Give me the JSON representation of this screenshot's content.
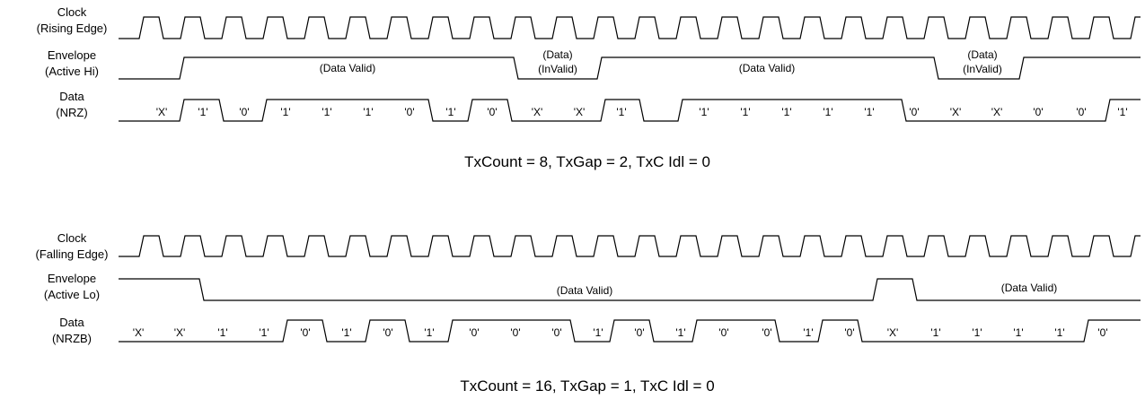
{
  "colors": {
    "line": "#000000",
    "background": "#ffffff"
  },
  "diagrams": [
    {
      "rows": {
        "clock": {
          "label": [
            "Clock",
            "(Rising Edge)"
          ]
        },
        "envelope": {
          "label": [
            "Envelope",
            "(Active Hi)"
          ],
          "notes": [
            {
              "lines": [
                "(Data Valid)"
              ]
            },
            {
              "lines": [
                "(Data)",
                "(InValid)"
              ]
            },
            {
              "lines": [
                "(Data Valid)"
              ]
            },
            {
              "lines": [
                "(Data)",
                "(InValid)"
              ]
            }
          ]
        },
        "data": {
          "label": [
            "Data",
            "(NRZ)"
          ],
          "bits": [
            "'X'",
            "'1'",
            "'0'",
            "'1'",
            "'1'",
            "'1'",
            "'0'",
            "'1'",
            "'0'",
            "'X'",
            "'X'",
            "'1'",
            "'1'",
            "'1'",
            "'1'",
            "'1'",
            "'1'",
            "'0'",
            "'X'",
            "'X'",
            "'0'",
            "'0'",
            "'1'"
          ]
        }
      },
      "caption": "TxCount = 8, TxGap = 2, TxC Idl = 0"
    },
    {
      "rows": {
        "clock": {
          "label": [
            "Clock",
            "(Falling Edge)"
          ]
        },
        "envelope": {
          "label": [
            "Envelope",
            "(Active Lo)"
          ],
          "notes": [
            {
              "lines": [
                "(Data Valid)"
              ]
            },
            {
              "lines": [
                "(Data Valid)"
              ]
            }
          ]
        },
        "data": {
          "label": [
            "Data",
            "(NRZB)"
          ],
          "bits": [
            "'X'",
            "'X'",
            "'1'",
            "'1'",
            "'0'",
            "'1'",
            "'0'",
            "'1'",
            "'0'",
            "'0'",
            "'0'",
            "'1'",
            "'0'",
            "'1'",
            "'0'",
            "'0'",
            "'1'",
            "'0'",
            "'X'",
            "'1'",
            "'1'",
            "'1'",
            "'1'",
            "'0'"
          ]
        }
      },
      "caption": "TxCount = 16, TxGap = 1, TxC Idl = 0"
    }
  ]
}
